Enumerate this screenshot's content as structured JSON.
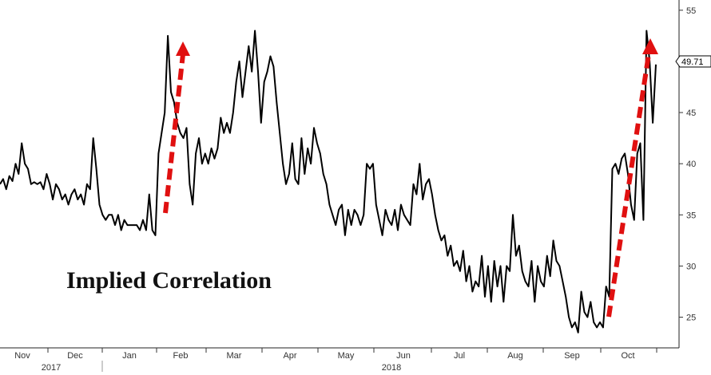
{
  "chart_data": {
    "type": "line",
    "title": "Implied Correlation",
    "y_axis": {
      "position": "right",
      "range": [
        22,
        56
      ],
      "ticks": [
        25,
        30,
        35,
        40,
        45,
        50,
        55
      ]
    },
    "x_axis": {
      "months": [
        "Nov",
        "Dec",
        "Jan",
        "Feb",
        "Mar",
        "Apr",
        "May",
        "Jun",
        "Jul",
        "Aug",
        "Sep",
        "Oct"
      ],
      "years": [
        "2017",
        "2018"
      ]
    },
    "last_value_label": "49.71",
    "grid": false,
    "colors": {
      "line": "#000000",
      "arrows": "#e01010"
    },
    "series": [
      {
        "values": [
          38.0,
          38.5,
          37.5,
          38.8,
          38.3,
          40.0,
          39.0,
          42.0,
          40.0,
          39.5,
          38.0,
          38.2,
          38.0,
          38.2,
          37.5,
          39.0,
          38.0,
          36.5,
          38.0,
          37.5,
          36.5,
          37.0,
          36.0,
          37.0,
          37.5,
          36.5,
          37.0,
          36.0,
          38.0,
          37.5,
          42.5,
          39.5,
          36.0,
          35.0,
          34.5,
          35.0,
          35.0,
          34.0,
          35.0,
          33.5,
          34.5,
          34.0,
          34.0,
          34.0,
          34.0,
          33.5,
          34.5,
          33.5,
          37.0,
          33.5,
          33.0,
          41.0,
          43.0,
          45.0,
          52.5,
          47.0,
          46.0,
          44.0,
          43.0,
          42.5,
          43.5,
          38.0,
          36.0,
          41.0,
          42.5,
          40.0,
          41.0,
          40.0,
          41.5,
          40.5,
          41.5,
          44.5,
          43.0,
          44.0,
          43.0,
          45.0,
          48.0,
          50.0,
          46.5,
          49.0,
          51.5,
          49.0,
          53.0,
          49.0,
          44.0,
          48.0,
          49.0,
          50.5,
          49.5,
          46.0,
          43.0,
          40.0,
          38.0,
          39.0,
          42.0,
          38.5,
          38.0,
          42.5,
          39.0,
          41.5,
          40.0,
          43.5,
          42.0,
          41.0,
          39.0,
          38.0,
          36.0,
          35.0,
          34.0,
          35.5,
          36.0,
          33.0,
          35.5,
          34.0,
          35.5,
          35.0,
          34.0,
          35.0,
          40.0,
          39.5,
          40.0,
          36.0,
          34.5,
          33.0,
          35.5,
          34.5,
          34.0,
          35.5,
          33.5,
          36.0,
          35.0,
          34.5,
          34.0,
          38.0,
          37.0,
          40.0,
          36.5,
          38.0,
          38.5,
          37.0,
          35.0,
          33.5,
          32.5,
          33.0,
          31.0,
          32.0,
          30.0,
          30.5,
          29.5,
          31.5,
          28.5,
          30.0,
          27.5,
          28.5,
          28.0,
          31.0,
          27.0,
          30.0,
          26.5,
          30.5,
          28.0,
          30.0,
          26.5,
          30.0,
          29.5,
          35.0,
          31.0,
          32.0,
          29.5,
          28.5,
          28.0,
          30.5,
          26.5,
          30.0,
          28.5,
          28.0,
          31.0,
          29.0,
          32.5,
          30.5,
          30.0,
          28.5,
          27.0,
          25.0,
          24.0,
          24.5,
          23.5,
          27.5,
          25.5,
          25.0,
          26.5,
          24.5,
          24.0,
          24.5,
          24.0,
          28.0,
          27.0,
          39.5,
          40.0,
          39.0,
          40.5,
          41.0,
          39.0,
          36.0,
          34.5,
          41.0,
          42.0,
          34.5,
          53.0,
          50.0,
          44.0,
          49.7
        ]
      }
    ]
  }
}
